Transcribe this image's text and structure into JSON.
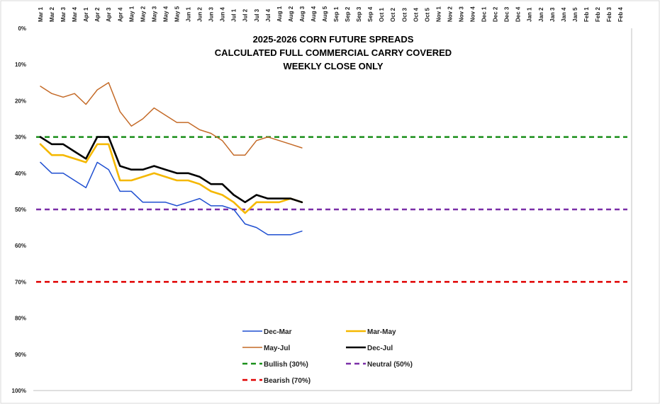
{
  "chart_data": {
    "type": "line",
    "title_lines": [
      "2025-2026 CORN FUTURE SPREADS",
      "CALCULATED FULL COMMERCIAL CARRY COVERED",
      "WEEKLY CLOSE ONLY"
    ],
    "x_ticks": [
      "Mar 1",
      "Mar 2",
      "Mar 3",
      "Mar 4",
      "Apr 1",
      "Apr 2",
      "Apr 3",
      "Apr 4",
      "May 1",
      "May 2",
      "May 3",
      "May 4",
      "May 5",
      "Jun 1",
      "Jun 2",
      "Jun 3",
      "Jun 4",
      "Jul 1",
      "Jul 2",
      "Jul 3",
      "Jul 4",
      "Aug 1",
      "Aug 2",
      "Aug 3",
      "Aug 4",
      "Aug 5",
      "Sep 1",
      "Sep 2",
      "Sep 3",
      "Sep 4",
      "Oct 1",
      "Oct 2",
      "Oct 3",
      "Oct 4",
      "Oct 5",
      "Nov 1",
      "Nov 2",
      "Nov 3",
      "Nov 4",
      "Dec 1",
      "Dec 2",
      "Dec 3",
      "Dec 4",
      "Jan 1",
      "Jan 2",
      "Jan 3",
      "Jan 4",
      "Jan 5",
      "Feb 1",
      "Feb 2",
      "Feb 3",
      "Feb 4"
    ],
    "y_ticks": [
      "0%",
      "10%",
      "20%",
      "30%",
      "40%",
      "50%",
      "60%",
      "70%",
      "80%",
      "90%",
      "100%"
    ],
    "ylim": [
      0,
      100
    ],
    "y_inverted": true,
    "grid": false,
    "series": [
      {
        "name": "Dec-Mar",
        "color": "#1f4fd1",
        "dash": false,
        "values": [
          37,
          40,
          40,
          42,
          44,
          37,
          39,
          45,
          45,
          48,
          48,
          48,
          49,
          48,
          47,
          49,
          49,
          50,
          54,
          55,
          57,
          57,
          57,
          56
        ]
      },
      {
        "name": "Mar-May",
        "color": "#f5b800",
        "dash": false,
        "values": [
          32,
          35,
          35,
          36,
          37,
          32,
          32,
          42,
          42,
          41,
          40,
          41,
          42,
          42,
          43,
          45,
          46,
          48,
          51,
          48,
          48,
          48,
          47,
          48
        ]
      },
      {
        "name": "May-Jul",
        "color": "#c46a27",
        "dash": false,
        "values": [
          16,
          18,
          19,
          18,
          21,
          17,
          15,
          23,
          27,
          25,
          22,
          24,
          26,
          26,
          28,
          29,
          31,
          35,
          35,
          31,
          30,
          31,
          32,
          33
        ]
      },
      {
        "name": "Dec-Jul",
        "color": "#000000",
        "dash": false,
        "values": [
          30,
          32,
          32,
          34,
          36,
          30,
          30,
          38,
          39,
          39,
          38,
          39,
          40,
          40,
          41,
          43,
          43,
          46,
          48,
          46,
          47,
          47,
          47,
          48
        ]
      },
      {
        "name": "Bullish (30%)",
        "color": "#1a8f1a",
        "dash": true,
        "level": 30
      },
      {
        "name": "Neutral (50%)",
        "color": "#7a2ea8",
        "dash": true,
        "level": 50
      },
      {
        "name": "Bearish (70%)",
        "color": "#e00000",
        "dash": true,
        "level": 70
      }
    ]
  }
}
